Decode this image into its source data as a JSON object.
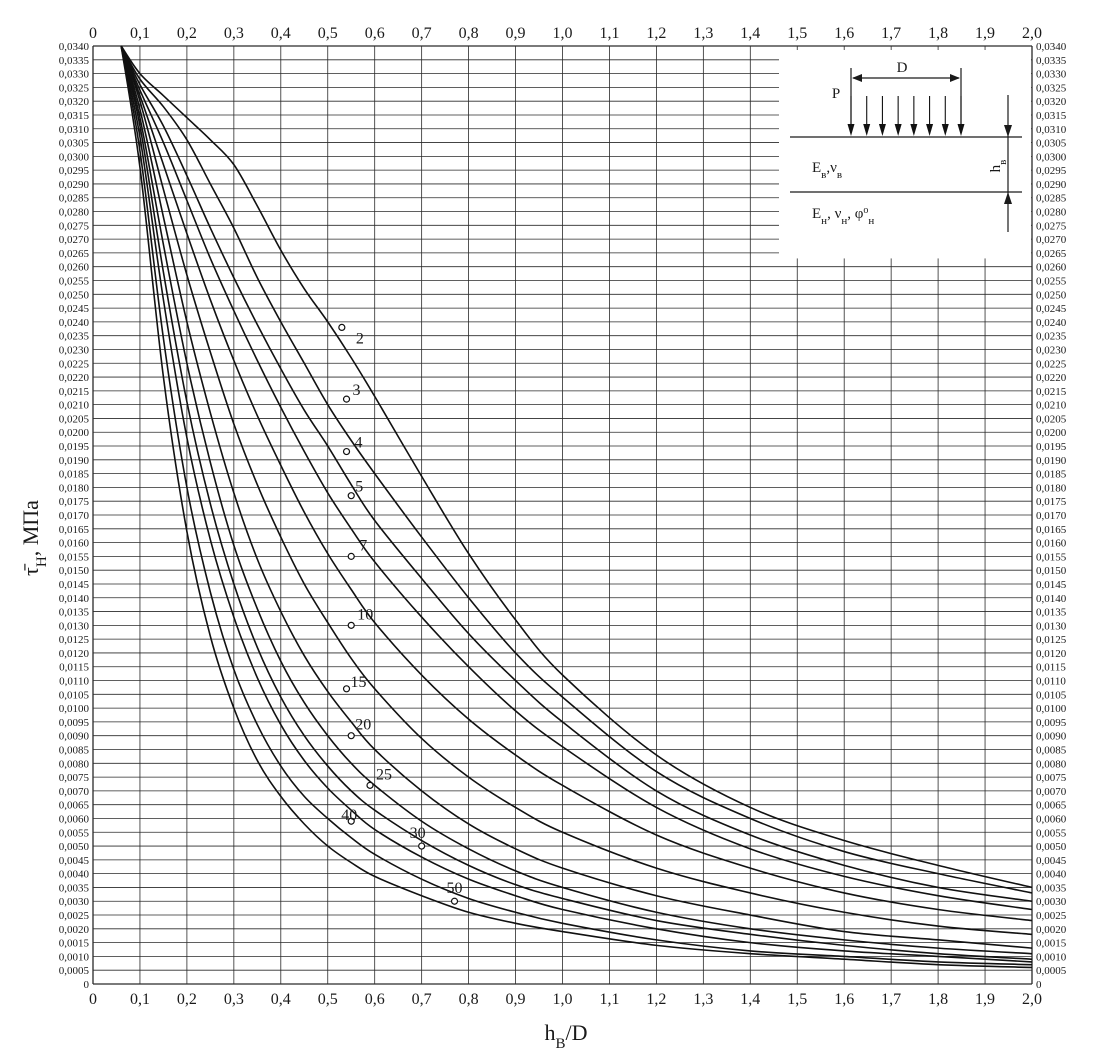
{
  "chart_data": {
    "type": "line",
    "xlabel": "h",
    "xlabel_sub": "В",
    "xlabel_tail": "/D",
    "ylabel": "τ̄",
    "ylabel_sub": "Н",
    "ylabel_unit": ", МПа",
    "xlim": [
      0,
      2.0
    ],
    "ylim": [
      0,
      0.034
    ],
    "grid": true,
    "x_ticks": [
      "0",
      "0,1",
      "0,2",
      "0,3",
      "0,4",
      "0,5",
      "0,6",
      "0,7",
      "0,8",
      "0,9",
      "1,0",
      "1,1",
      "1,2",
      "1,3",
      "1,4",
      "1,5",
      "1,6",
      "1,7",
      "1,8",
      "1,9",
      "2,0"
    ],
    "y_ticks": [
      "0",
      "0,0005",
      "0,0010",
      "0,0015",
      "0,0020",
      "0,0025",
      "0,0030",
      "0,0035",
      "0,0040",
      "0,0045",
      "0,0050",
      "0,0055",
      "0,0060",
      "0,0065",
      "0,0070",
      "0,0075",
      "0,0080",
      "0,0085",
      "0,0090",
      "0,0095",
      "0,0100",
      "0,0105",
      "0,0110",
      "0,0115",
      "0,0120",
      "0,0125",
      "0,0130",
      "0,0135",
      "0,0140",
      "0,0145",
      "0,0150",
      "0,0155",
      "0,0160",
      "0,0165",
      "0,0170",
      "0,0175",
      "0,0180",
      "0,0185",
      "0,0190",
      "0,0195",
      "0,0200",
      "0,0205",
      "0,0210",
      "0,0215",
      "0,0220",
      "0,0225",
      "0,0230",
      "0,0235",
      "0,0240",
      "0,0245",
      "0,0250",
      "0,0255",
      "0,0260",
      "0,0265",
      "0,0270",
      "0,0275",
      "0,0280",
      "0,0285",
      "0,0290",
      "0,0295",
      "0,0300",
      "0,0305",
      "0,0310",
      "0,0315",
      "0,0320",
      "0,0325",
      "0,0330",
      "0,0335",
      "0,0340"
    ],
    "y_ticks_right": [
      "0",
      "0,0005",
      "0,0010",
      "0,0015",
      "0,0020",
      "0,0025",
      "0,0030",
      "0,0035",
      "0,0040",
      "0,0045",
      "0,0050",
      "0,0055",
      "0,0060",
      "0,0065",
      "0,0070",
      "0,0075",
      "0,0080",
      "0,0085",
      "0,0090",
      "0,0095",
      "0,0100",
      "0,0105",
      "0,0110",
      "0,0115",
      "0,0120",
      "0,0125",
      "0,0130",
      "0,0135",
      "0,0140",
      "0,0145",
      "0,0150",
      "0,0155",
      "0,0160",
      "0,0165",
      "0,0170",
      "0,0175",
      "0,0180",
      "0,0185",
      "0,0190",
      "0,0195",
      "0,0200",
      "0,0205",
      "0,0210",
      "0,0215",
      "0,0220",
      "0,0225",
      "0,0230",
      "0,0235",
      "0,0240",
      "0,0245",
      "0,0250",
      "0,0255",
      "0,0260",
      "0,0265",
      "0,0270",
      "0,0275",
      "0,0280",
      "0,0285",
      "0,0290",
      "0,0295",
      "0,0300",
      "0,0305",
      "0,0310",
      "0,0315",
      "0,0320",
      "0,0325",
      "0,0330",
      "0,0335",
      "0,0340"
    ],
    "series": [
      {
        "name": "2",
        "x": [
          0.06,
          0.1,
          0.15,
          0.2,
          0.25,
          0.3,
          0.35,
          0.4,
          0.45,
          0.5,
          0.55,
          0.6,
          0.7,
          0.8,
          0.9,
          1.0,
          1.2,
          1.4,
          1.6,
          1.8,
          2.0
        ],
        "values": [
          0.034,
          0.033,
          0.0322,
          0.0314,
          0.0306,
          0.0297,
          0.0282,
          0.0266,
          0.0252,
          0.024,
          0.0227,
          0.0213,
          0.0184,
          0.0156,
          0.0132,
          0.0112,
          0.0083,
          0.0064,
          0.0052,
          0.0043,
          0.0035
        ],
        "marker": {
          "x": 0.53,
          "y": 0.0238
        }
      },
      {
        "name": "3",
        "x": [
          0.06,
          0.1,
          0.15,
          0.2,
          0.25,
          0.3,
          0.35,
          0.4,
          0.45,
          0.5,
          0.55,
          0.6,
          0.7,
          0.8,
          0.9,
          1.0,
          1.2,
          1.4,
          1.6,
          1.8,
          2.0
        ],
        "values": [
          0.034,
          0.0328,
          0.0318,
          0.0306,
          0.029,
          0.0274,
          0.0256,
          0.024,
          0.0225,
          0.021,
          0.0197,
          0.0185,
          0.0162,
          0.014,
          0.012,
          0.0104,
          0.0077,
          0.006,
          0.0048,
          0.004,
          0.0033
        ],
        "marker": {
          "x": 0.54,
          "y": 0.0212
        }
      },
      {
        "name": "4",
        "x": [
          0.06,
          0.1,
          0.15,
          0.2,
          0.25,
          0.3,
          0.35,
          0.4,
          0.45,
          0.5,
          0.55,
          0.6,
          0.7,
          0.8,
          0.9,
          1.0,
          1.2,
          1.4,
          1.6,
          1.8,
          2.0
        ],
        "values": [
          0.034,
          0.0326,
          0.0311,
          0.0293,
          0.0274,
          0.0256,
          0.0239,
          0.0223,
          0.0208,
          0.0195,
          0.0181,
          0.0168,
          0.0147,
          0.0127,
          0.011,
          0.0095,
          0.007,
          0.0054,
          0.0043,
          0.0035,
          0.003
        ],
        "marker": {
          "x": 0.54,
          "y": 0.0193
        }
      },
      {
        "name": "5",
        "x": [
          0.06,
          0.1,
          0.15,
          0.2,
          0.25,
          0.3,
          0.35,
          0.4,
          0.45,
          0.5,
          0.55,
          0.6,
          0.7,
          0.8,
          0.9,
          1.0,
          1.2,
          1.4,
          1.6,
          1.8,
          2.0
        ],
        "values": [
          0.034,
          0.0324,
          0.0305,
          0.0284,
          0.0263,
          0.0244,
          0.0226,
          0.0209,
          0.0193,
          0.0178,
          0.0165,
          0.0153,
          0.0133,
          0.0115,
          0.0099,
          0.0086,
          0.0064,
          0.0049,
          0.0039,
          0.0032,
          0.0027
        ],
        "marker": {
          "x": 0.55,
          "y": 0.0177
        }
      },
      {
        "name": "7",
        "x": [
          0.06,
          0.1,
          0.15,
          0.2,
          0.25,
          0.3,
          0.35,
          0.4,
          0.45,
          0.5,
          0.55,
          0.6,
          0.7,
          0.8,
          0.9,
          1.0,
          1.2,
          1.4,
          1.6,
          1.8,
          2.0
        ],
        "values": [
          0.034,
          0.0322,
          0.0297,
          0.0272,
          0.0248,
          0.0226,
          0.0206,
          0.0188,
          0.0171,
          0.0156,
          0.0143,
          0.0131,
          0.0112,
          0.0096,
          0.0083,
          0.0072,
          0.0054,
          0.0042,
          0.0033,
          0.0027,
          0.0023
        ],
        "marker": {
          "x": 0.55,
          "y": 0.0155
        }
      },
      {
        "name": "10",
        "x": [
          0.06,
          0.1,
          0.15,
          0.2,
          0.25,
          0.3,
          0.35,
          0.4,
          0.45,
          0.5,
          0.55,
          0.6,
          0.7,
          0.8,
          0.9,
          1.0,
          1.2,
          1.4,
          1.6,
          1.8,
          2.0
        ],
        "values": [
          0.034,
          0.032,
          0.0288,
          0.0257,
          0.0229,
          0.0203,
          0.0181,
          0.0162,
          0.0145,
          0.0131,
          0.0118,
          0.0107,
          0.0089,
          0.0075,
          0.0064,
          0.0055,
          0.0042,
          0.0033,
          0.0026,
          0.0021,
          0.0018
        ],
        "marker": {
          "x": 0.55,
          "y": 0.013
        }
      },
      {
        "name": "15",
        "x": [
          0.06,
          0.1,
          0.15,
          0.2,
          0.25,
          0.3,
          0.35,
          0.4,
          0.45,
          0.5,
          0.55,
          0.6,
          0.7,
          0.8,
          0.9,
          1.0,
          1.2,
          1.4,
          1.6,
          1.8,
          2.0
        ],
        "values": [
          0.034,
          0.0317,
          0.0278,
          0.024,
          0.0207,
          0.0178,
          0.0154,
          0.0135,
          0.0119,
          0.0106,
          0.0095,
          0.0085,
          0.007,
          0.0058,
          0.0049,
          0.0042,
          0.0032,
          0.0025,
          0.0019,
          0.0016,
          0.0013
        ],
        "marker": {
          "x": 0.54,
          "y": 0.0107
        }
      },
      {
        "name": "20",
        "x": [
          0.06,
          0.1,
          0.15,
          0.2,
          0.25,
          0.3,
          0.35,
          0.4,
          0.45,
          0.5,
          0.55,
          0.6,
          0.7,
          0.8,
          0.9,
          1.0,
          1.2,
          1.4,
          1.6,
          1.8,
          2.0
        ],
        "values": [
          0.034,
          0.0314,
          0.0268,
          0.0225,
          0.0189,
          0.0159,
          0.0136,
          0.0117,
          0.0102,
          0.009,
          0.008,
          0.0072,
          0.0059,
          0.0049,
          0.0041,
          0.0035,
          0.0026,
          0.002,
          0.0016,
          0.0013,
          0.0011
        ],
        "marker": {
          "x": 0.55,
          "y": 0.009
        }
      },
      {
        "name": "25",
        "x": [
          0.06,
          0.1,
          0.15,
          0.2,
          0.25,
          0.3,
          0.35,
          0.4,
          0.45,
          0.5,
          0.55,
          0.6,
          0.7,
          0.8,
          0.9,
          1.0,
          1.2,
          1.4,
          1.6,
          1.8,
          2.0
        ],
        "values": [
          0.034,
          0.0311,
          0.0258,
          0.0211,
          0.0174,
          0.0145,
          0.0122,
          0.0104,
          0.009,
          0.0079,
          0.007,
          0.0063,
          0.0052,
          0.0043,
          0.0036,
          0.0031,
          0.0023,
          0.0018,
          0.0014,
          0.0011,
          0.0009
        ],
        "marker": {
          "x": 0.59,
          "y": 0.0072
        }
      },
      {
        "name": "30",
        "x": [
          0.06,
          0.1,
          0.15,
          0.2,
          0.25,
          0.3,
          0.35,
          0.4,
          0.45,
          0.5,
          0.55,
          0.6,
          0.7,
          0.8,
          0.9,
          1.0,
          1.2,
          1.4,
          1.6,
          1.8,
          2.0
        ],
        "values": [
          0.034,
          0.0307,
          0.0248,
          0.0198,
          0.0161,
          0.0133,
          0.0111,
          0.0094,
          0.0081,
          0.0071,
          0.0063,
          0.0056,
          0.0046,
          0.0038,
          0.0032,
          0.0027,
          0.002,
          0.0015,
          0.0012,
          0.001,
          0.0008
        ],
        "marker": {
          "x": 0.7,
          "y": 0.005
        }
      },
      {
        "name": "40",
        "x": [
          0.06,
          0.1,
          0.15,
          0.2,
          0.25,
          0.3,
          0.35,
          0.4,
          0.45,
          0.5,
          0.55,
          0.6,
          0.7,
          0.8,
          0.9,
          1.0,
          1.2,
          1.4,
          1.6,
          1.8,
          2.0
        ],
        "values": [
          0.034,
          0.0302,
          0.0234,
          0.018,
          0.0142,
          0.0114,
          0.0094,
          0.0079,
          0.0068,
          0.006,
          0.0053,
          0.0047,
          0.0038,
          0.0031,
          0.0026,
          0.0022,
          0.0016,
          0.0012,
          0.001,
          0.0008,
          0.0007
        ],
        "marker": {
          "x": 0.55,
          "y": 0.0059
        }
      },
      {
        "name": "50",
        "x": [
          0.06,
          0.1,
          0.15,
          0.2,
          0.25,
          0.3,
          0.35,
          0.4,
          0.45,
          0.5,
          0.55,
          0.6,
          0.7,
          0.8,
          0.9,
          1.0,
          1.2,
          1.4,
          1.6,
          1.8,
          2.0
        ],
        "values": [
          0.034,
          0.0296,
          0.022,
          0.0164,
          0.0126,
          0.01,
          0.0081,
          0.0068,
          0.0058,
          0.005,
          0.0044,
          0.0039,
          0.0032,
          0.0026,
          0.0022,
          0.0019,
          0.0014,
          0.0011,
          0.0009,
          0.0007,
          0.0006
        ],
        "marker": {
          "x": 0.77,
          "y": 0.003
        }
      }
    ]
  },
  "inset": {
    "label_p": "P",
    "label_d": "D",
    "upper_e": "E",
    "upper_e_sub": "в",
    "upper_nu": ",ν",
    "upper_nu_sub": "в",
    "lower_e": "E",
    "lower_e_sub": "н",
    "lower_nu": ", ν",
    "lower_nu_sub": "н",
    "lower_phi": ", φ",
    "lower_phi_sub": "н",
    "lower_phi_sup": "о",
    "thick_h": "h",
    "thick_h_sub": "в"
  }
}
